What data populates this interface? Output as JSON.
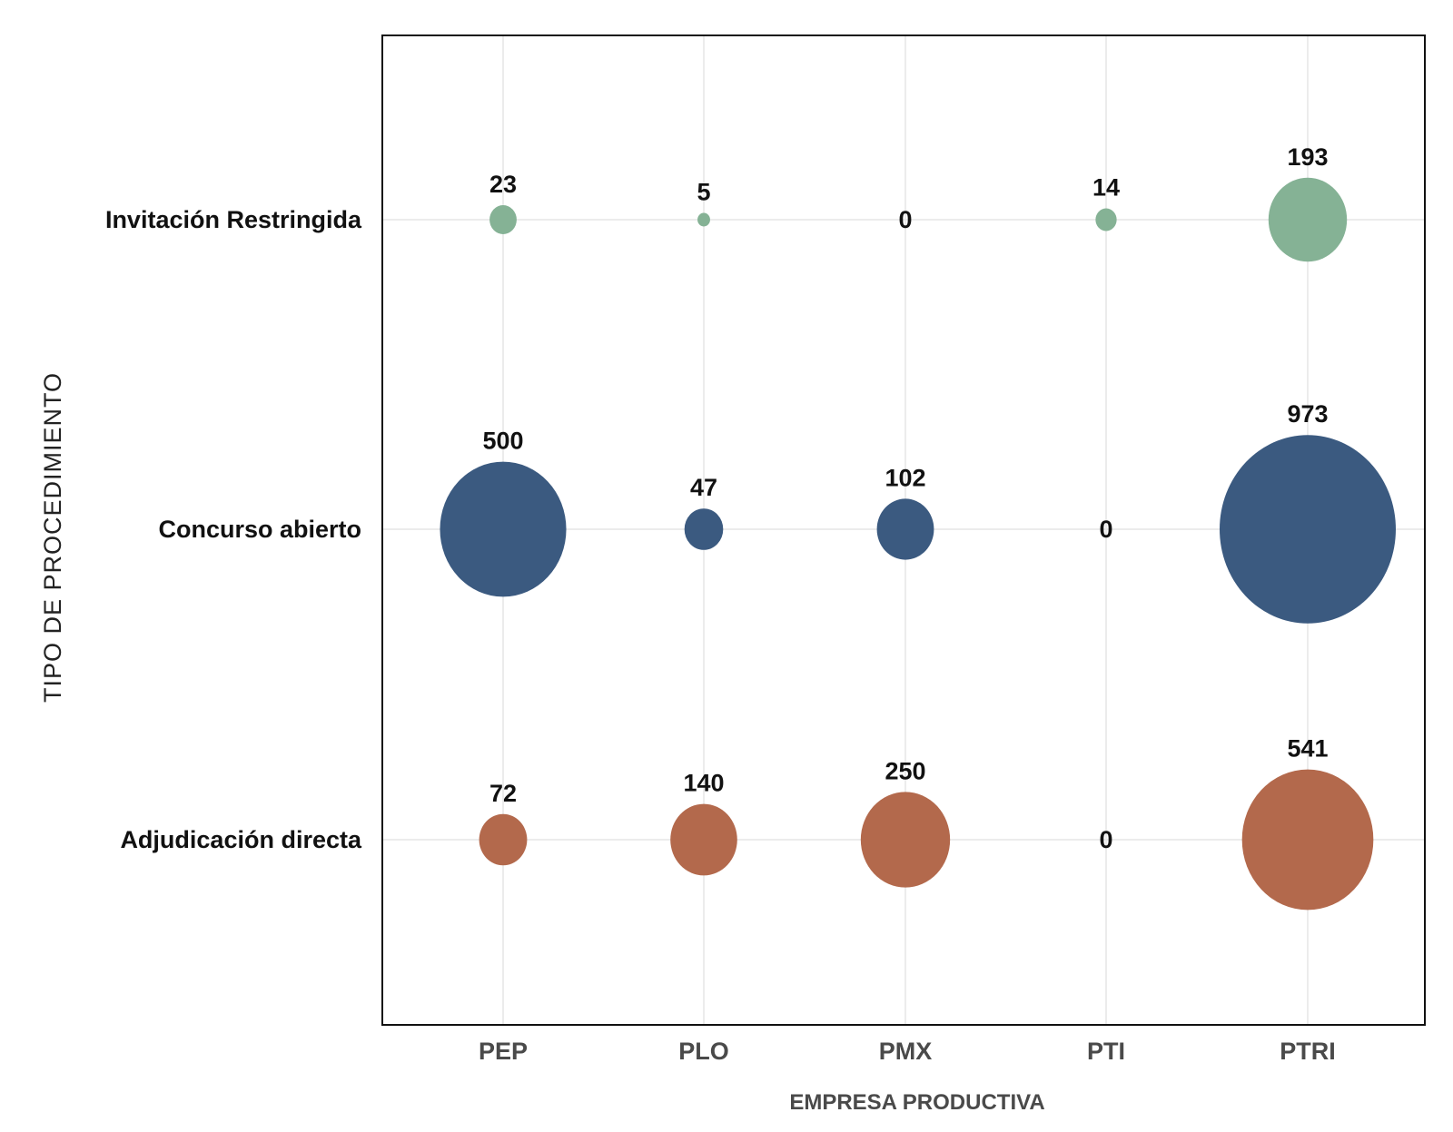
{
  "chart_data": {
    "type": "scatter",
    "xlabel": "EMPRESA PRODUCTIVA",
    "ylabel": "TIPO DE PROCEDIMIENTO",
    "categories": [
      "PEP",
      "PLO",
      "PMX",
      "PTI",
      "PTRI"
    ],
    "rows": [
      "Invitación Restringida",
      "Concurso abierto",
      "Adjudicación directa"
    ],
    "grid": true,
    "legend": "none",
    "series": [
      {
        "name": "Invitación Restringida",
        "color": "#85b295",
        "values": [
          23,
          5,
          0,
          14,
          193
        ],
        "labels": [
          "23",
          "5",
          "0",
          "14",
          "193"
        ]
      },
      {
        "name": "Concurso abierto",
        "color": "#3b5a80",
        "values": [
          500,
          47,
          102,
          0,
          973
        ],
        "labels": [
          "500",
          "47",
          "102",
          "0",
          "973"
        ]
      },
      {
        "name": "Adjudicación directa",
        "color": "#b3694c",
        "values": [
          72,
          140,
          250,
          0,
          541
        ],
        "labels": [
          "72",
          "140",
          "250",
          "0",
          "541"
        ]
      }
    ]
  }
}
